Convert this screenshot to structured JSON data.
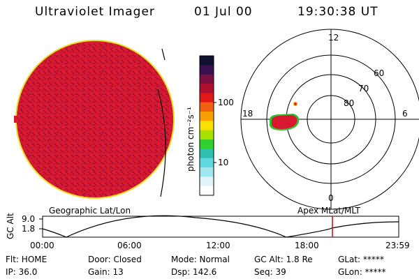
{
  "header": {
    "instrument": "Ultraviolet Imager",
    "date": "01 Jul 00",
    "time": "19:30:38 UT"
  },
  "colorbar": {
    "unit_label": "photon cm⁻²s⁻¹",
    "ticks": [
      "100",
      "10"
    ],
    "colors": [
      "#101030",
      "#3a1050",
      "#7a1040",
      "#b01030",
      "#e01818",
      "#f06010",
      "#f8a000",
      "#f8e000",
      "#a8e000",
      "#30d030",
      "#30c0b0",
      "#60d8e0",
      "#a0e8f0",
      "#e0f4f8",
      "#ffffff"
    ]
  },
  "polar": {
    "mlt_labels": [
      "12",
      "18",
      "6",
      "0"
    ],
    "mlat_labels": [
      "60",
      "70",
      "80"
    ]
  },
  "labels": {
    "left_map": "Geographic Lat/Lon",
    "right_map": "Apex MLat/MLT"
  },
  "orbit": {
    "y_label": "GC Alt",
    "y_ticks": [
      "9.0",
      "1.8"
    ],
    "x_ticks": [
      "00:00",
      "06:00",
      "12:00",
      "18:00",
      "23:59"
    ],
    "current_time_color": "#e00000"
  },
  "status": {
    "flt": "Flt: HOME",
    "ip": "IP: 36.0",
    "door": "Door: Closed",
    "gain": "Gain: 13",
    "mode": "Mode: Normal",
    "dsp": "Dsp:  142.6",
    "gc_alt": "GC Alt: 1.8 Re",
    "seq": "Seq: 39",
    "glat": "GLat: *****",
    "glon": "GLon: *****"
  }
}
